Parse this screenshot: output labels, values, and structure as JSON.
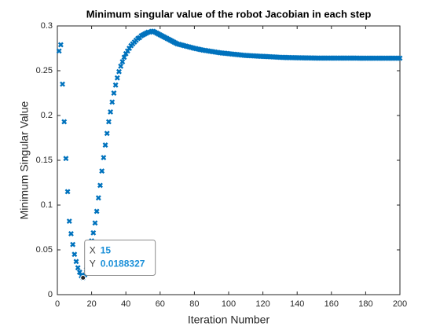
{
  "chart_data": {
    "type": "scatter",
    "title": "Minimum singular value of the robot Jacobian in each step",
    "xlabel": "Iteration Number",
    "ylabel": "Minimum Singular Value",
    "xlim": [
      0,
      200
    ],
    "xticks": [
      0,
      20,
      40,
      60,
      80,
      100,
      120,
      140,
      160,
      180,
      200
    ],
    "ylim": [
      0,
      0.3
    ],
    "yticks": [
      0,
      0.05,
      0.1,
      0.15,
      0.2,
      0.25,
      0.3
    ],
    "color": "#0072bd",
    "marker": "x",
    "x": [
      1,
      2,
      3,
      4,
      5,
      6,
      7,
      8,
      9,
      10,
      11,
      12,
      13,
      14,
      15,
      16,
      17,
      18,
      19,
      20,
      21,
      22,
      23,
      24,
      25,
      26,
      27,
      28,
      29,
      30,
      31,
      32,
      33,
      34,
      35,
      36,
      37,
      38,
      39,
      40,
      41,
      42,
      43,
      44,
      45,
      46,
      47,
      48,
      49,
      50,
      51,
      52,
      53,
      54,
      55,
      56,
      57,
      58,
      59,
      60,
      61,
      62,
      63,
      64,
      65,
      66,
      67,
      68,
      69,
      70,
      71,
      72,
      73,
      74,
      75,
      76,
      77,
      78,
      79,
      80,
      81,
      82,
      83,
      84,
      85,
      86,
      87,
      88,
      89,
      90,
      91,
      92,
      93,
      94,
      95,
      96,
      97,
      98,
      99,
      100,
      101,
      102,
      103,
      104,
      105,
      106,
      107,
      108,
      109,
      110,
      111,
      112,
      113,
      114,
      115,
      116,
      117,
      118,
      119,
      120,
      121,
      122,
      123,
      124,
      125,
      126,
      127,
      128,
      129,
      130,
      131,
      132,
      133,
      134,
      135,
      136,
      137,
      138,
      139,
      140,
      141,
      142,
      143,
      144,
      145,
      146,
      147,
      148,
      149,
      150,
      151,
      152,
      153,
      154,
      155,
      156,
      157,
      158,
      159,
      160,
      161,
      162,
      163,
      164,
      165,
      166,
      167,
      168,
      169,
      170,
      171,
      172,
      173,
      174,
      175,
      176,
      177,
      178,
      179,
      180,
      181,
      182,
      183,
      184,
      185,
      186,
      187,
      188,
      189,
      190,
      191,
      192,
      193,
      194,
      195,
      196,
      197,
      198,
      199,
      200
    ],
    "values": [
      0.272,
      0.279,
      0.235,
      0.193,
      0.152,
      0.115,
      0.082,
      0.068,
      0.056,
      0.045,
      0.037,
      0.03,
      0.025,
      0.021,
      0.0188327,
      0.022,
      0.028,
      0.037,
      0.048,
      0.06,
      0.069,
      0.08,
      0.093,
      0.108,
      0.122,
      0.138,
      0.153,
      0.167,
      0.18,
      0.193,
      0.204,
      0.215,
      0.225,
      0.234,
      0.242,
      0.249,
      0.255,
      0.26,
      0.265,
      0.269,
      0.272,
      0.275,
      0.278,
      0.28,
      0.282,
      0.284,
      0.286,
      0.287,
      0.289,
      0.29,
      0.291,
      0.292,
      0.293,
      0.293,
      0.294,
      0.294,
      0.293,
      0.292,
      0.291,
      0.29,
      0.289,
      0.288,
      0.287,
      0.286,
      0.285,
      0.284,
      0.283,
      0.282,
      0.281,
      0.28,
      0.2795,
      0.279,
      0.2785,
      0.278,
      0.2775,
      0.277,
      0.2765,
      0.276,
      0.2755,
      0.275,
      0.2746,
      0.2742,
      0.2738,
      0.2734,
      0.273,
      0.2727,
      0.2724,
      0.2721,
      0.2718,
      0.2715,
      0.2712,
      0.2709,
      0.2706,
      0.2703,
      0.27,
      0.2698,
      0.2696,
      0.2694,
      0.2692,
      0.269,
      0.2688,
      0.2686,
      0.2684,
      0.2682,
      0.268,
      0.2678,
      0.2676,
      0.2674,
      0.2672,
      0.267,
      0.2669,
      0.2668,
      0.2667,
      0.2666,
      0.2665,
      0.2664,
      0.2663,
      0.2662,
      0.2661,
      0.266,
      0.2659,
      0.2658,
      0.2657,
      0.2656,
      0.2655,
      0.2654,
      0.2653,
      0.2652,
      0.2651,
      0.265,
      0.2649,
      0.2648,
      0.2648,
      0.2647,
      0.2647,
      0.2646,
      0.2646,
      0.2645,
      0.2645,
      0.2645,
      0.2644,
      0.2644,
      0.2644,
      0.2643,
      0.2643,
      0.2643,
      0.2643,
      0.2642,
      0.2642,
      0.2642,
      0.2641,
      0.2641,
      0.2641,
      0.2641,
      0.2641,
      0.2641,
      0.2641,
      0.2641,
      0.2641,
      0.2641,
      0.2641,
      0.2641,
      0.2641,
      0.2641,
      0.2641,
      0.2641,
      0.2641,
      0.2641,
      0.2641,
      0.2641,
      0.2641,
      0.2641,
      0.2641,
      0.2641,
      0.2641,
      0.264,
      0.264,
      0.264,
      0.264,
      0.264,
      0.264,
      0.264,
      0.264,
      0.264,
      0.264,
      0.264,
      0.264,
      0.264,
      0.264,
      0.264,
      0.264,
      0.264,
      0.264,
      0.264,
      0.264,
      0.264,
      0.264,
      0.264,
      0.264,
      0.264
    ],
    "datatip": {
      "index": 14,
      "x_label": "X",
      "x": 15,
      "y_label": "Y",
      "y": 0.0188327
    }
  }
}
